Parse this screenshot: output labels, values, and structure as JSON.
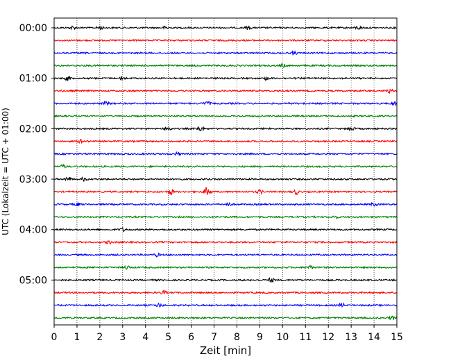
{
  "chart_data": {
    "type": "line",
    "chart_kind": "helicorder",
    "xlabel": "Zeit  [min]",
    "ylabel": "UTC (Lokalzeit = UTC + 01:00)",
    "xlim": [
      0,
      15
    ],
    "x_ticks": [
      "0",
      "1",
      "2",
      "3",
      "4",
      "5",
      "6",
      "7",
      "8",
      "9",
      "10",
      "11",
      "12",
      "13",
      "14",
      "15"
    ],
    "y_tick_labels": [
      "00:00",
      "01:00",
      "02:00",
      "03:00",
      "04:00",
      "05:00"
    ],
    "trace_colors": [
      "#000000",
      "#ff0000",
      "#0000ff",
      "#008000"
    ],
    "traces_per_hour": 4,
    "trace_count": 24,
    "vertical_grid": "dotted",
    "bursts": [
      {
        "trace": 0,
        "x": 0.8,
        "amp": 2.2
      },
      {
        "trace": 0,
        "x": 2.0,
        "amp": 2.5
      },
      {
        "trace": 0,
        "x": 4.9,
        "amp": 2.2
      },
      {
        "trace": 0,
        "x": 8.5,
        "amp": 2.2
      },
      {
        "trace": 0,
        "x": 13.3,
        "amp": 2.0
      },
      {
        "trace": 2,
        "x": 10.5,
        "amp": 2.0
      },
      {
        "trace": 3,
        "x": 10.0,
        "amp": 2.2
      },
      {
        "trace": 4,
        "x": 0.6,
        "amp": 3.0
      },
      {
        "trace": 4,
        "x": 3.0,
        "amp": 2.2
      },
      {
        "trace": 4,
        "x": 9.3,
        "amp": 2.0
      },
      {
        "trace": 5,
        "x": 14.7,
        "amp": 2.2
      },
      {
        "trace": 6,
        "x": 2.3,
        "amp": 2.5
      },
      {
        "trace": 6,
        "x": 6.7,
        "amp": 2.8
      },
      {
        "trace": 6,
        "x": 14.9,
        "amp": 2.2
      },
      {
        "trace": 8,
        "x": 5.0,
        "amp": 3.0
      },
      {
        "trace": 8,
        "x": 6.4,
        "amp": 4.0
      },
      {
        "trace": 8,
        "x": 13.0,
        "amp": 2.5
      },
      {
        "trace": 9,
        "x": 1.2,
        "amp": 2.8
      },
      {
        "trace": 10,
        "x": 5.4,
        "amp": 2.0
      },
      {
        "trace": 11,
        "x": 0.4,
        "amp": 2.0
      },
      {
        "trace": 12,
        "x": 0.6,
        "amp": 3.2
      },
      {
        "trace": 12,
        "x": 1.3,
        "amp": 2.2
      },
      {
        "trace": 13,
        "x": 5.1,
        "amp": 3.5
      },
      {
        "trace": 13,
        "x": 6.7,
        "amp": 7.0
      },
      {
        "trace": 13,
        "x": 9.0,
        "amp": 2.5
      },
      {
        "trace": 13,
        "x": 10.6,
        "amp": 3.2
      },
      {
        "trace": 14,
        "x": 1.0,
        "amp": 2.2
      },
      {
        "trace": 14,
        "x": 7.6,
        "amp": 2.2
      },
      {
        "trace": 14,
        "x": 14.0,
        "amp": 2.2
      },
      {
        "trace": 15,
        "x": 12.3,
        "amp": 2.0
      },
      {
        "trace": 16,
        "x": 3.0,
        "amp": 2.2
      },
      {
        "trace": 17,
        "x": 2.4,
        "amp": 2.2
      },
      {
        "trace": 18,
        "x": 4.5,
        "amp": 2.0
      },
      {
        "trace": 19,
        "x": 3.2,
        "amp": 2.5
      },
      {
        "trace": 19,
        "x": 11.2,
        "amp": 2.5
      },
      {
        "trace": 20,
        "x": 9.5,
        "amp": 2.8
      },
      {
        "trace": 21,
        "x": 4.8,
        "amp": 2.5
      },
      {
        "trace": 22,
        "x": 4.6,
        "amp": 2.5
      },
      {
        "trace": 22,
        "x": 12.6,
        "amp": 2.5
      },
      {
        "trace": 23,
        "x": 14.8,
        "amp": 2.5
      }
    ]
  }
}
